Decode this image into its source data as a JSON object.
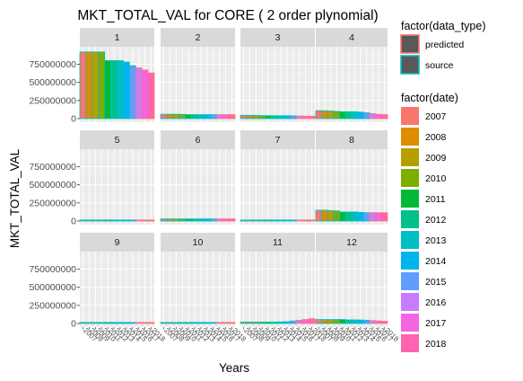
{
  "chart_data": {
    "type": "bar",
    "title": "MKT_TOTAL_VAL for CORE ( 2  order plynomial)",
    "xlabel": "Years",
    "ylabel": "MKT_TOTAL_VAL",
    "ylim": [
      0,
      1000000000
    ],
    "yticks": [
      0,
      250000000,
      500000000,
      750000000
    ],
    "ytick_labels": [
      "0",
      "250000000",
      "500000000",
      "750000000"
    ],
    "grid": true,
    "facet_layout": "4 columns x 3 rows",
    "facets": [
      "1",
      "2",
      "3",
      "4",
      "5",
      "6",
      "7",
      "8",
      "9",
      "10",
      "11",
      "12"
    ],
    "categories": [
      "2007",
      "2008",
      "2009",
      "2010",
      "2011",
      "2012",
      "2013",
      "2014",
      "2015",
      "2016",
      "2017",
      "2018"
    ],
    "data_type_legend": {
      "title": "factor(data_type)",
      "entries": [
        {
          "name": "predicted",
          "border_color": "#F8766D"
        },
        {
          "name": "source",
          "border_color": "#00BFC4"
        }
      ]
    },
    "date_legend": {
      "title": "factor(date)",
      "entries": [
        {
          "name": "2007",
          "color": "#F8766D"
        },
        {
          "name": "2008",
          "color": "#DE8C00"
        },
        {
          "name": "2009",
          "color": "#B79F00"
        },
        {
          "name": "2010",
          "color": "#7CAE00"
        },
        {
          "name": "2011",
          "color": "#00BA38"
        },
        {
          "name": "2012",
          "color": "#00C08B"
        },
        {
          "name": "2013",
          "color": "#00BFC4"
        },
        {
          "name": "2014",
          "color": "#00B4F0"
        },
        {
          "name": "2015",
          "color": "#619CFF"
        },
        {
          "name": "2016",
          "color": "#C77CFF"
        },
        {
          "name": "2017",
          "color": "#F564E3"
        },
        {
          "name": "2018",
          "color": "#FF64B0"
        }
      ]
    },
    "predicted_from_year": "2016",
    "series": [
      {
        "facet": "1",
        "values": [
          920000000,
          920000000,
          920000000,
          920000000,
          800000000,
          800000000,
          800000000,
          780000000,
          730000000,
          700000000,
          670000000,
          630000000
        ]
      },
      {
        "facet": "2",
        "values": [
          60000000,
          60000000,
          60000000,
          58000000,
          55000000,
          55000000,
          55000000,
          55000000,
          55000000,
          55000000,
          55000000,
          55000000
        ]
      },
      {
        "facet": "3",
        "values": [
          45000000,
          45000000,
          45000000,
          42000000,
          40000000,
          40000000,
          40000000,
          40000000,
          38000000,
          36000000,
          35000000,
          33000000
        ]
      },
      {
        "facet": "4",
        "values": [
          110000000,
          110000000,
          105000000,
          100000000,
          95000000,
          95000000,
          95000000,
          90000000,
          80000000,
          70000000,
          60000000,
          55000000
        ]
      },
      {
        "facet": "5",
        "values": [
          8000000,
          8000000,
          8000000,
          8000000,
          8000000,
          8000000,
          8000000,
          8000000,
          8000000,
          8000000,
          8000000,
          8000000
        ]
      },
      {
        "facet": "6",
        "values": [
          30000000,
          30000000,
          30000000,
          30000000,
          30000000,
          30000000,
          30000000,
          30000000,
          30000000,
          30000000,
          30000000,
          30000000
        ]
      },
      {
        "facet": "7",
        "values": [
          8000000,
          8000000,
          8000000,
          8000000,
          8000000,
          8000000,
          8000000,
          8000000,
          8000000,
          8000000,
          8000000,
          8000000
        ]
      },
      {
        "facet": "8",
        "values": [
          150000000,
          150000000,
          145000000,
          140000000,
          125000000,
          125000000,
          125000000,
          120000000,
          115000000,
          115000000,
          115000000,
          115000000
        ]
      },
      {
        "facet": "9",
        "values": [
          5000000,
          5000000,
          5000000,
          5000000,
          5000000,
          5000000,
          5000000,
          5000000,
          5000000,
          5000000,
          5000000,
          5000000
        ]
      },
      {
        "facet": "10",
        "values": [
          10000000,
          10000000,
          10000000,
          10000000,
          10000000,
          10000000,
          10000000,
          10000000,
          10000000,
          10000000,
          10000000,
          10000000
        ]
      },
      {
        "facet": "11",
        "values": [
          20000000,
          20000000,
          20000000,
          20000000,
          20000000,
          20000000,
          22000000,
          25000000,
          35000000,
          45000000,
          55000000,
          65000000
        ]
      },
      {
        "facet": "12",
        "values": [
          55000000,
          55000000,
          55000000,
          55000000,
          55000000,
          50000000,
          50000000,
          48000000,
          45000000,
          40000000,
          35000000,
          30000000
        ]
      }
    ]
  }
}
